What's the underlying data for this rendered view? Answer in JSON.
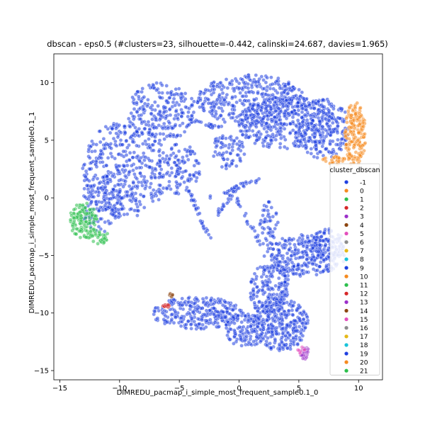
{
  "chart_data": {
    "type": "scatter",
    "title": "dbscan - eps0.5 (#clusters=23, silhouette=-0.442, calinski=24.687, davies=1.965)",
    "xlabel": "DIMREDU_pacmap_i_simple_most_frequent_sample0.1_0",
    "ylabel": "DIMREDU_pacmap_i_simple_most_frequent_sample0.1_1",
    "xlim": [
      -15.5,
      12
    ],
    "ylim": [
      -15.8,
      12.5
    ],
    "x_ticks": [
      -15,
      -10,
      -5,
      0,
      5,
      10
    ],
    "y_ticks": [
      -15,
      -10,
      -5,
      0,
      5,
      10
    ],
    "grid": false,
    "legend_placement": "center-right",
    "legend": {
      "title": "cluster_dbscan",
      "entries": [
        {
          "label": "-1",
          "color": "#1f3fe0"
        },
        {
          "label": "0",
          "color": "#f58a1f"
        },
        {
          "label": "1",
          "color": "#2cbf4c"
        },
        {
          "label": "2",
          "color": "#d62728"
        },
        {
          "label": "3",
          "color": "#9b2fc9"
        },
        {
          "label": "4",
          "color": "#8c4510"
        },
        {
          "label": "5",
          "color": "#e34fbd"
        },
        {
          "label": "6",
          "color": "#8c8c8c"
        },
        {
          "label": "7",
          "color": "#e5b817"
        },
        {
          "label": "8",
          "color": "#18c3d9"
        },
        {
          "label": "9",
          "color": "#1f3fe0"
        },
        {
          "label": "10",
          "color": "#f58a1f"
        },
        {
          "label": "11",
          "color": "#2cbf4c"
        },
        {
          "label": "12",
          "color": "#d62728"
        },
        {
          "label": "13",
          "color": "#9b2fc9"
        },
        {
          "label": "14",
          "color": "#8c4510"
        },
        {
          "label": "15",
          "color": "#e34fbd"
        },
        {
          "label": "16",
          "color": "#8c8c8c"
        },
        {
          "label": "17",
          "color": "#e5b817"
        },
        {
          "label": "18",
          "color": "#18c3d9"
        },
        {
          "label": "19",
          "color": "#1f3fe0"
        },
        {
          "label": "20",
          "color": "#f58a1f"
        },
        {
          "label": "21",
          "color": "#2cbf4c"
        }
      ]
    },
    "regions": [
      {
        "cluster": "-1",
        "color": "#1f3fe0",
        "shape": "ellipse",
        "cx": -9.5,
        "cy": 2.5,
        "rx": 3.6,
        "ry": 4.2,
        "n": 420
      },
      {
        "cluster": "-1",
        "color": "#1f3fe0",
        "shape": "ellipse",
        "cx": -11.5,
        "cy": -0.5,
        "rx": 1.8,
        "ry": 2.5,
        "n": 120
      },
      {
        "cluster": "-1",
        "color": "#1f3fe0",
        "shape": "ellipse",
        "cx": -6.5,
        "cy": 7.5,
        "rx": 3.0,
        "ry": 2.5,
        "n": 220
      },
      {
        "cluster": "-1",
        "color": "#1f3fe0",
        "shape": "ellipse",
        "cx": -5.0,
        "cy": 2.5,
        "rx": 1.8,
        "ry": 2.2,
        "n": 110
      },
      {
        "cluster": "-1",
        "color": "#1f3fe0",
        "shape": "ellipse",
        "cx": 1.0,
        "cy": 8.5,
        "rx": 4.5,
        "ry": 2.2,
        "n": 380
      },
      {
        "cluster": "-1",
        "color": "#1f3fe0",
        "shape": "ellipse",
        "cx": 4.0,
        "cy": 6.5,
        "rx": 4.2,
        "ry": 2.3,
        "n": 380
      },
      {
        "cluster": "-1",
        "color": "#1f3fe0",
        "shape": "ellipse",
        "cx": 7.0,
        "cy": 6.0,
        "rx": 2.3,
        "ry": 2.6,
        "n": 200
      },
      {
        "cluster": "-1",
        "color": "#1f3fe0",
        "shape": "ellipse",
        "cx": -1.0,
        "cy": 4.0,
        "rx": 1.5,
        "ry": 1.5,
        "n": 70
      },
      {
        "cluster": "-1",
        "color": "#1f3fe0",
        "shape": "ellipse",
        "cx": 5.5,
        "cy": -5.0,
        "rx": 3.4,
        "ry": 1.8,
        "n": 300
      },
      {
        "cluster": "-1",
        "color": "#1f3fe0",
        "shape": "ellipse",
        "cx": 7.5,
        "cy": -4.0,
        "rx": 1.5,
        "ry": 1.3,
        "n": 90
      },
      {
        "cluster": "-1",
        "color": "#1f3fe0",
        "shape": "ellipse",
        "cx": 2.5,
        "cy": -8.0,
        "rx": 1.6,
        "ry": 2.4,
        "n": 170
      },
      {
        "cluster": "-1",
        "color": "#1f3fe0",
        "shape": "ellipse",
        "cx": 3.5,
        "cy": -11.0,
        "rx": 2.3,
        "ry": 2.3,
        "n": 300
      },
      {
        "cluster": "-1",
        "color": "#1f3fe0",
        "shape": "ellipse",
        "cx": -3.5,
        "cy": -10.0,
        "rx": 3.8,
        "ry": 1.4,
        "n": 270
      },
      {
        "cluster": "-1",
        "color": "#1f3fe0",
        "shape": "ellipse",
        "cx": 0.5,
        "cy": -11.5,
        "rx": 1.6,
        "ry": 1.5,
        "n": 110
      },
      {
        "cluster": "-1",
        "color": "#1f3fe0",
        "shape": "ellipse",
        "cx": 2.5,
        "cy": -2.5,
        "rx": 0.8,
        "ry": 2.2,
        "n": 50
      },
      {
        "cluster": "0",
        "color": "#f58a1f",
        "shape": "ellipse",
        "cx": 9.7,
        "cy": 5.5,
        "rx": 0.9,
        "ry": 2.8,
        "n": 180
      },
      {
        "cluster": "0",
        "color": "#f58a1f",
        "shape": "ellipse",
        "cx": 8.0,
        "cy": 3.3,
        "rx": 1.2,
        "ry": 0.4,
        "n": 30
      },
      {
        "cluster": "1",
        "color": "#2cbf4c",
        "shape": "ellipse",
        "cx": -13.0,
        "cy": -2.0,
        "rx": 1.2,
        "ry": 1.6,
        "n": 130
      },
      {
        "cluster": "1",
        "color": "#2cbf4c",
        "shape": "ellipse",
        "cx": -11.7,
        "cy": -3.4,
        "rx": 0.8,
        "ry": 0.6,
        "n": 30
      },
      {
        "cluster": "2",
        "color": "#d62728",
        "shape": "ellipse",
        "cx": -6.1,
        "cy": -9.4,
        "rx": 0.3,
        "ry": 0.25,
        "n": 14
      },
      {
        "cluster": "4",
        "color": "#8c4510",
        "shape": "ellipse",
        "cx": -5.7,
        "cy": -8.4,
        "rx": 0.2,
        "ry": 0.25,
        "n": 6
      },
      {
        "cluster": "3",
        "color": "#9b2fc9",
        "shape": "ellipse",
        "cx": 5.5,
        "cy": -13.5,
        "rx": 0.5,
        "ry": 0.5,
        "n": 25
      },
      {
        "cluster": "5",
        "color": "#e34fbd",
        "shape": "ellipse",
        "cx": 5.2,
        "cy": -13.2,
        "rx": 0.3,
        "ry": 0.3,
        "n": 8
      }
    ],
    "paths": [
      {
        "cluster": "-1",
        "color": "#1f3fe0",
        "points": [
          [
            -4.5,
            1.0
          ],
          [
            -3.5,
            -1.0
          ],
          [
            -2.5,
            -3.5
          ]
        ],
        "n": 30
      },
      {
        "cluster": "-1",
        "color": "#1f3fe0",
        "points": [
          [
            0.0,
            1.5
          ],
          [
            -1.0,
            -0.5
          ],
          [
            -2.0,
            -1.5
          ]
        ],
        "n": 20
      },
      {
        "cluster": "-1",
        "color": "#1f3fe0",
        "points": [
          [
            -2.5,
            0.0
          ],
          [
            -1.0,
            0.5
          ],
          [
            0.5,
            1.2
          ],
          [
            1.5,
            1.5
          ]
        ],
        "n": 30
      },
      {
        "cluster": "-1",
        "color": "#1f3fe0",
        "points": [
          [
            -0.5,
            0.5
          ],
          [
            0.2,
            -1.0
          ],
          [
            1.0,
            -2.5
          ],
          [
            1.8,
            -4.0
          ]
        ],
        "n": 25
      },
      {
        "cluster": "-1",
        "color": "#1f3fe0",
        "points": [
          [
            -5.0,
            7.0
          ],
          [
            -3.0,
            6.5
          ],
          [
            -1.5,
            6.0
          ]
        ],
        "n": 25
      },
      {
        "cluster": "-1",
        "color": "#1f3fe0",
        "points": [
          [
            3.0,
            -5.0
          ],
          [
            4.0,
            -7.0
          ],
          [
            3.5,
            -9.0
          ]
        ],
        "n": 30
      }
    ]
  }
}
